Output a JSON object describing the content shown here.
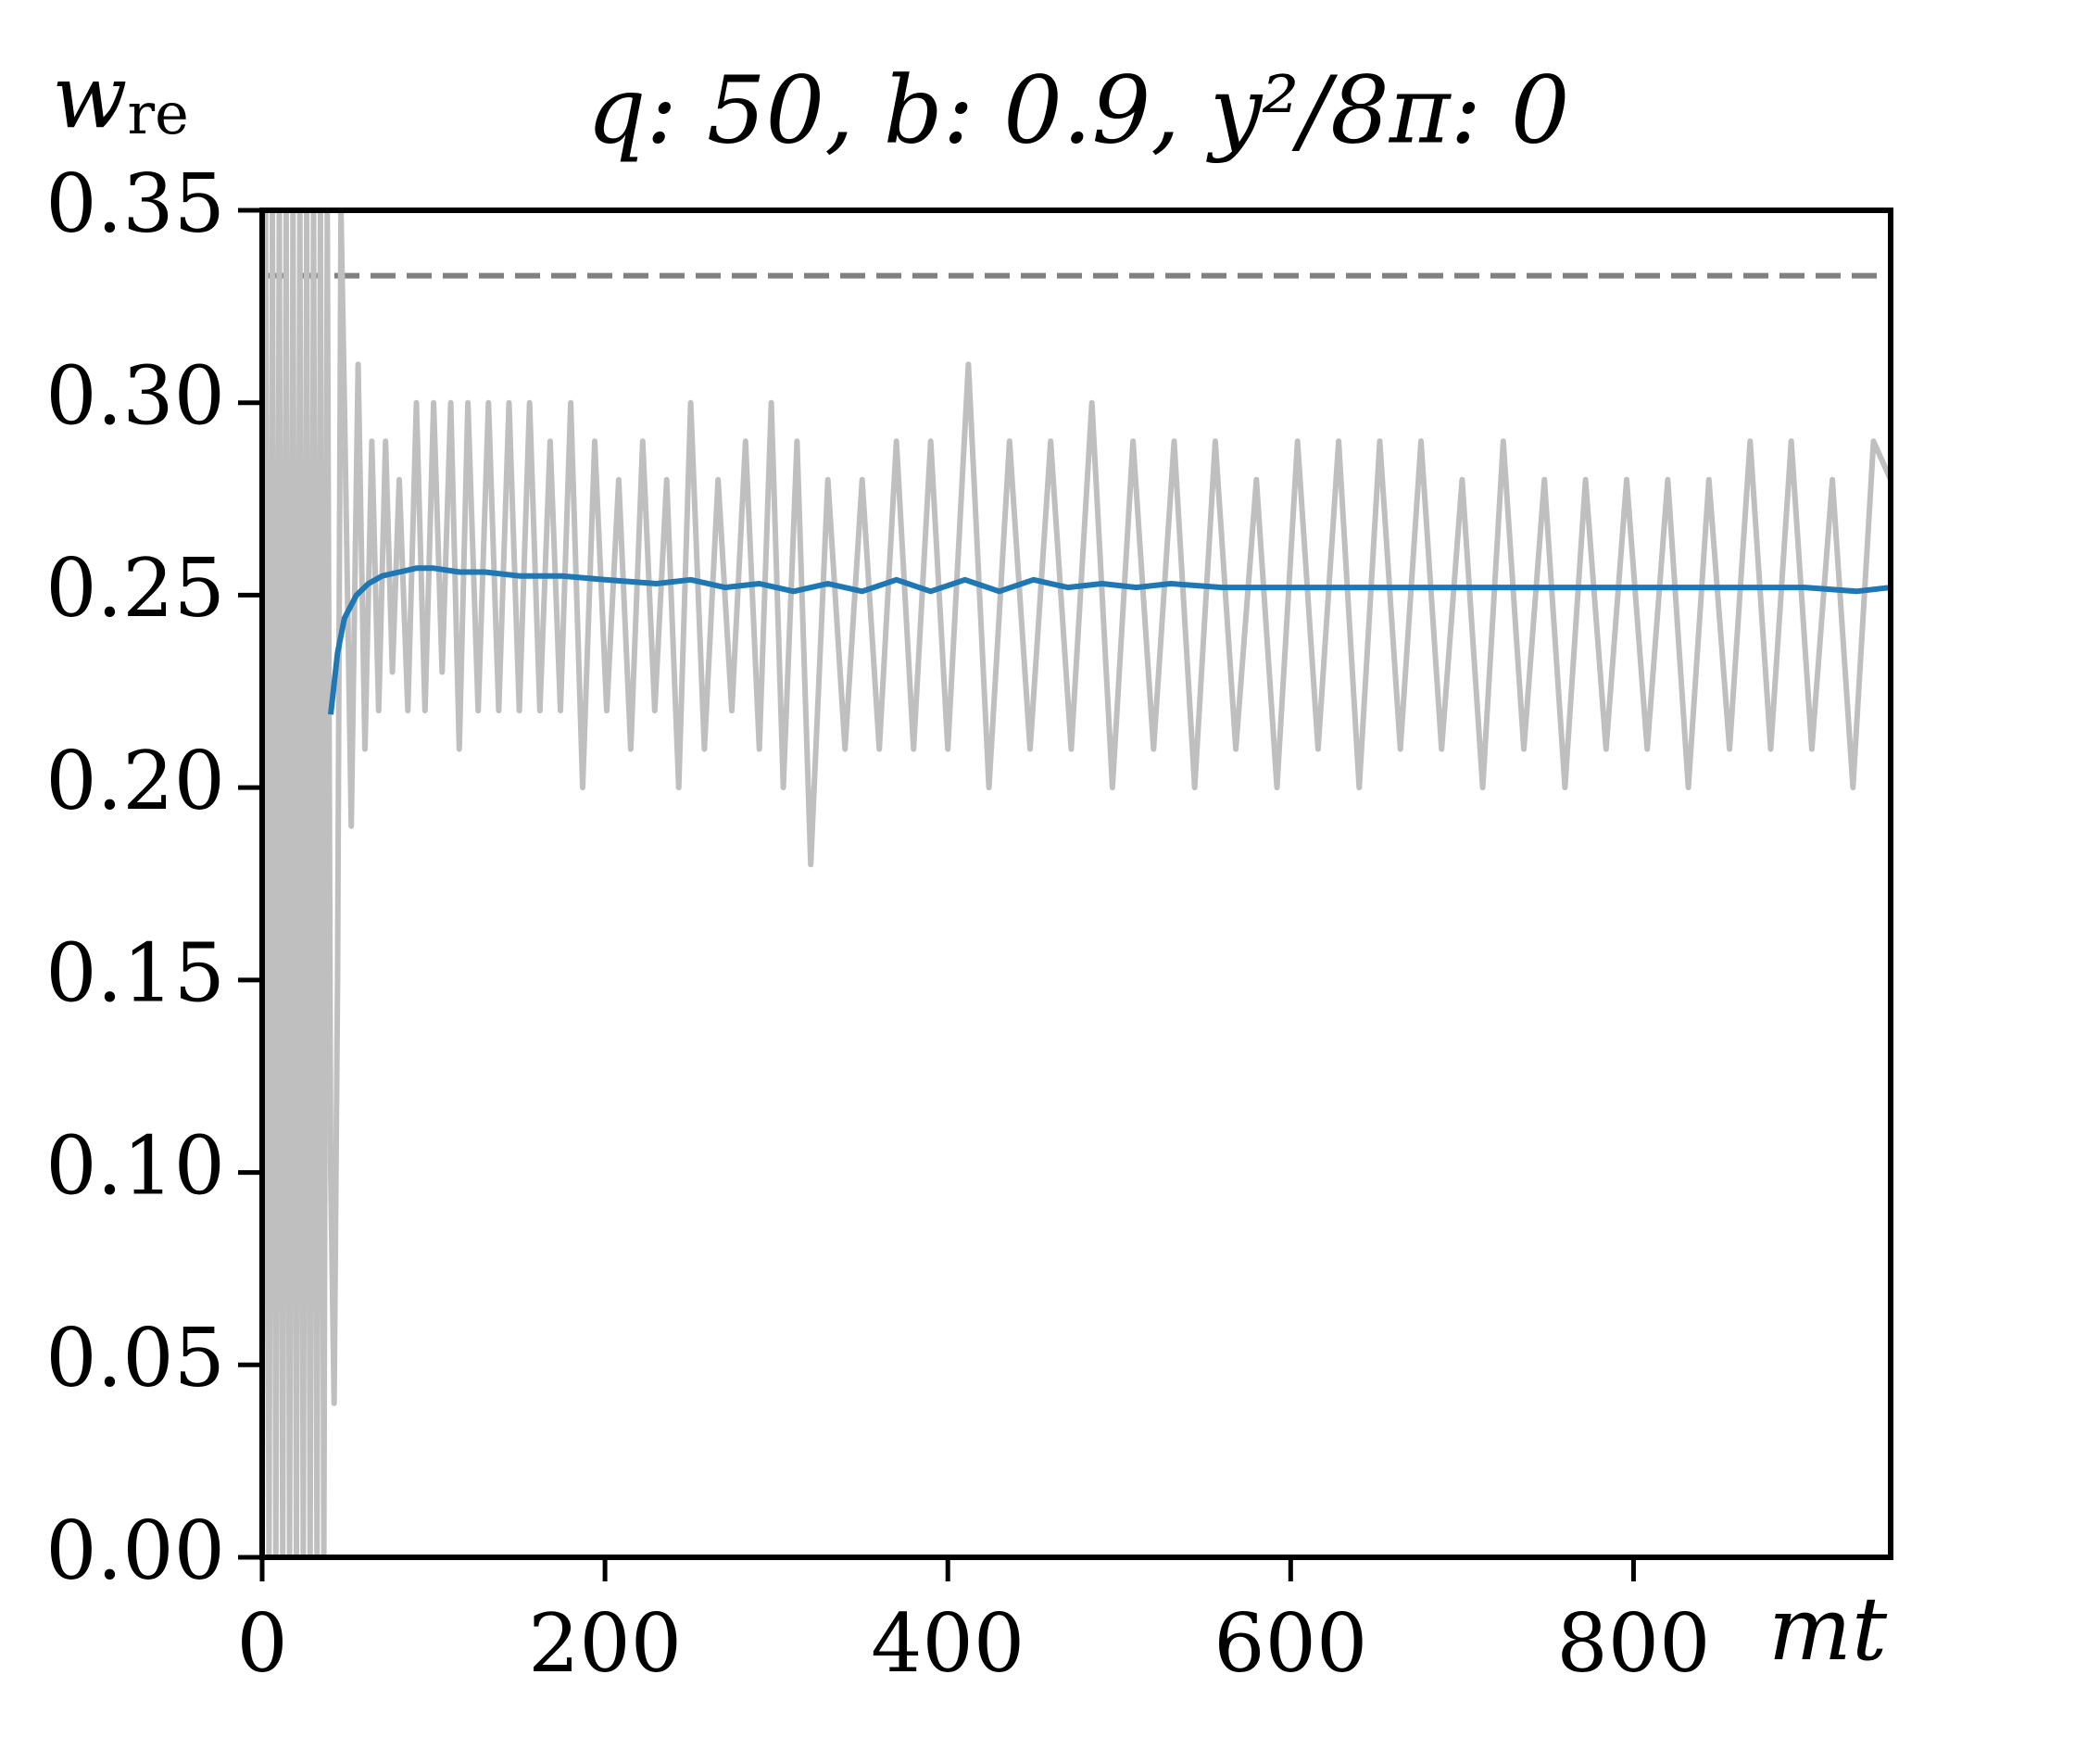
{
  "chart_data": {
    "type": "line",
    "title": "q: 50, b: 0.9, y²/8π: 0",
    "ylabel": "w_re",
    "xlabel": "mt",
    "xlim": [
      0,
      950
    ],
    "ylim": [
      0,
      0.35
    ],
    "xticks": [
      0,
      200,
      400,
      600,
      800
    ],
    "yticks": [
      {
        "value": 0,
        "label": "0.00"
      },
      {
        "value": 0.05,
        "label": "0.05"
      },
      {
        "value": 0.1,
        "label": "0.10"
      },
      {
        "value": 0.15,
        "label": "0.15"
      },
      {
        "value": 0.2,
        "label": "0.20"
      },
      {
        "value": 0.25,
        "label": "0.25"
      },
      {
        "value": 0.3,
        "label": "0.30"
      },
      {
        "value": 0.35,
        "label": "0.35"
      }
    ],
    "grid": false,
    "reference_line": {
      "value": 0.333,
      "color": "#808080",
      "dash": true
    },
    "series": [
      {
        "color": "#bfbfbf",
        "x": [
          0,
          2,
          4,
          6,
          8,
          10,
          12,
          14,
          16,
          18,
          20,
          22,
          24,
          26,
          28,
          30,
          32,
          34,
          36,
          38,
          40,
          42,
          44,
          46,
          48,
          52,
          56,
          60,
          64,
          68,
          72,
          76,
          80,
          85,
          90,
          95,
          100,
          105,
          110,
          115,
          120,
          126,
          132,
          138,
          144,
          150,
          156,
          162,
          168,
          174,
          180,
          187,
          194,
          201,
          208,
          215,
          222,
          229,
          236,
          243,
          250,
          258,
          266,
          274,
          282,
          290,
          297,
          304,
          312,
          320,
          330,
          340,
          350,
          360,
          370,
          380,
          390,
          400,
          412,
          424,
          436,
          448,
          460,
          472,
          484,
          496,
          508,
          520,
          532,
          544,
          556,
          568,
          580,
          592,
          604,
          616,
          628,
          640,
          652,
          664,
          676,
          688,
          700,
          712,
          724,
          736,
          748,
          760,
          772,
          784,
          796,
          808,
          820,
          832,
          844,
          856,
          868,
          880,
          892,
          904,
          916,
          928,
          940,
          950
        ],
        "values": [
          0,
          0.35,
          0,
          0.35,
          0,
          0.35,
          0,
          0.35,
          0,
          0.35,
          0,
          0.35,
          0,
          0.35,
          0,
          0.35,
          0,
          0.35,
          0,
          0.35,
          0.1,
          0.04,
          0.15,
          0.35,
          0.3,
          0.19,
          0.31,
          0.21,
          0.29,
          0.22,
          0.29,
          0.23,
          0.28,
          0.22,
          0.3,
          0.22,
          0.3,
          0.23,
          0.3,
          0.21,
          0.3,
          0.22,
          0.3,
          0.22,
          0.3,
          0.22,
          0.3,
          0.22,
          0.29,
          0.22,
          0.3,
          0.2,
          0.29,
          0.22,
          0.28,
          0.21,
          0.29,
          0.22,
          0.28,
          0.2,
          0.3,
          0.21,
          0.28,
          0.22,
          0.29,
          0.21,
          0.3,
          0.2,
          0.29,
          0.18,
          0.28,
          0.21,
          0.28,
          0.21,
          0.29,
          0.21,
          0.29,
          0.21,
          0.31,
          0.2,
          0.29,
          0.21,
          0.29,
          0.21,
          0.3,
          0.2,
          0.29,
          0.21,
          0.29,
          0.2,
          0.29,
          0.21,
          0.28,
          0.2,
          0.29,
          0.21,
          0.29,
          0.2,
          0.29,
          0.21,
          0.29,
          0.21,
          0.28,
          0.2,
          0.29,
          0.21,
          0.28,
          0.2,
          0.28,
          0.21,
          0.28,
          0.21,
          0.28,
          0.2,
          0.28,
          0.21,
          0.29,
          0.21,
          0.29,
          0.21,
          0.28,
          0.2,
          0.29,
          0.28
        ]
      },
      {
        "color": "#1f77b4",
        "x": [
          40,
          44,
          48,
          55,
          62,
          70,
          80,
          90,
          100,
          115,
          130,
          150,
          175,
          200,
          230,
          250,
          270,
          290,
          310,
          330,
          350,
          370,
          390,
          410,
          430,
          450,
          470,
          490,
          510,
          530,
          560,
          600,
          650,
          700,
          750,
          800,
          850,
          900,
          930,
          950
        ],
        "values": [
          0.219,
          0.235,
          0.244,
          0.25,
          0.253,
          0.255,
          0.256,
          0.257,
          0.257,
          0.256,
          0.256,
          0.255,
          0.255,
          0.254,
          0.253,
          0.254,
          0.252,
          0.253,
          0.251,
          0.253,
          0.251,
          0.254,
          0.251,
          0.254,
          0.251,
          0.254,
          0.252,
          0.253,
          0.252,
          0.253,
          0.252,
          0.252,
          0.252,
          0.252,
          0.252,
          0.252,
          0.252,
          0.252,
          0.251,
          0.252
        ]
      }
    ]
  }
}
